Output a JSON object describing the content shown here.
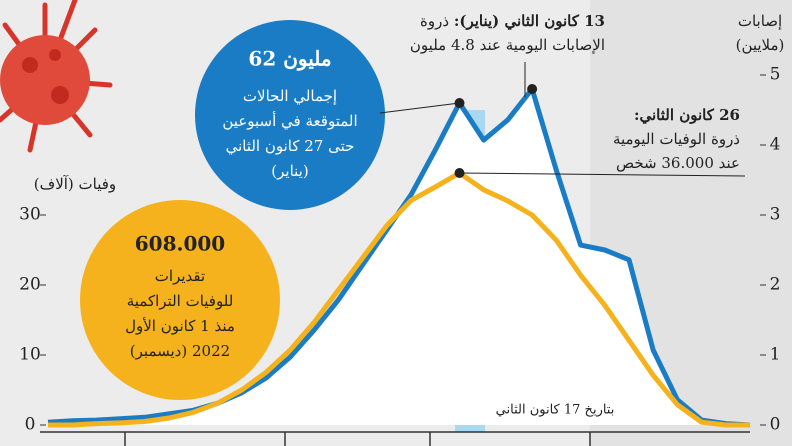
{
  "chart_data": {
    "type": "line",
    "ylabel": "وفيات (آلاف)",
    "y2label": [
      "إصابات",
      "(ملايين)"
    ],
    "categories": [
      null,
      null,
      null,
      null,
      null,
      null,
      null,
      null,
      null,
      null,
      null,
      null,
      null,
      null,
      null,
      null,
      null,
      null,
      null,
      null,
      null,
      null,
      null,
      null,
      null,
      null,
      null,
      null,
      null,
      null
    ],
    "series": [
      {
        "color": "#1a7cc4",
        "axis": "y2",
        "values": [
          0.04,
          0.06,
          0.07,
          0.09,
          0.11,
          0.16,
          0.21,
          0.31,
          0.46,
          0.67,
          0.97,
          1.36,
          1.79,
          2.29,
          2.79,
          3.29,
          3.93,
          4.6,
          4.07,
          4.36,
          4.8,
          3.64,
          2.57,
          2.5,
          2.36,
          1.07,
          0.36,
          0.07,
          0.02,
          0
        ]
      },
      {
        "color": "#f5b21c",
        "values": [
          0,
          0,
          0.2,
          0.3,
          0.5,
          1,
          1.8,
          3.1,
          5,
          7.5,
          10.7,
          14.7,
          19.3,
          23.9,
          28.5,
          32.1,
          34,
          36,
          33.6,
          32,
          30,
          26.4,
          21.4,
          17.1,
          12.1,
          7.1,
          2.9,
          0.4,
          0,
          0
        ]
      }
    ],
    "ylim": [
      0,
      50
    ],
    "yticks": [
      0,
      10,
      20,
      30
    ],
    "y2lim": [
      0,
      5
    ],
    "y2ticks": [
      0,
      1,
      2,
      3,
      4,
      5
    ],
    "annotations": {
      "cases_peak": {
        "bold": "13 كانون الثاني (يناير):",
        "rest": "ذروة",
        "line2": "الإصابات اليومية عند 4.8 مليون"
      },
      "deaths_peak": {
        "bold": "26 كانون الثاني:",
        "line2": "ذروة الوفيات اليومية",
        "line3": "عند 36.000 شخص"
      },
      "total_cases": {
        "value": "62 مليون",
        "lines": [
          "إجمالي الحالات",
          "المتوقعة في أسبوعين",
          "حتى 27 كانون الثاني",
          "(يناير)"
        ]
      },
      "total_deaths": {
        "value": "608.000",
        "lines": [
          "تقديرات",
          "للوفيات التراكمية",
          "منذ 1 كانون الأول",
          "(ديسمبر) 2022"
        ]
      },
      "date_note": "بتاريخ 17 كانون الثاني"
    }
  }
}
